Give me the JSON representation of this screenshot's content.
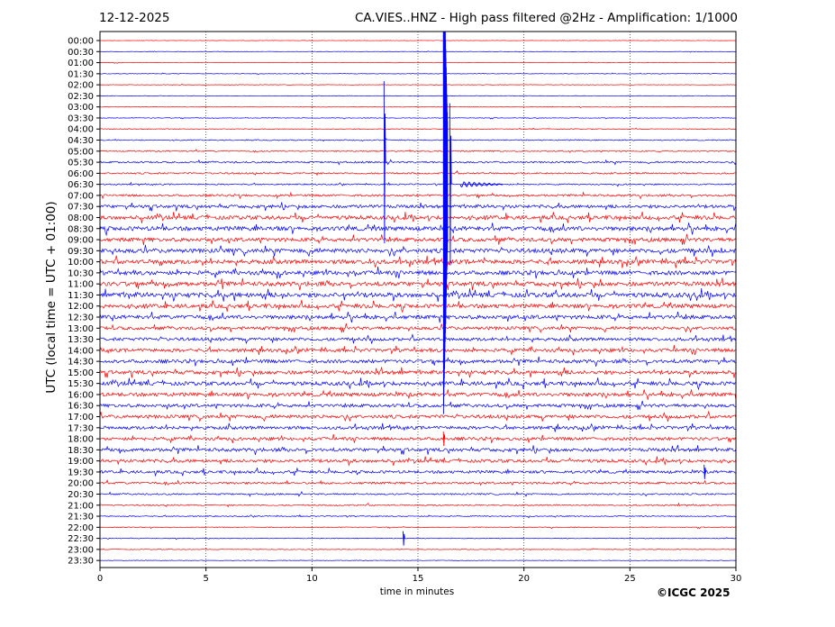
{
  "header": {
    "date": "12-12-2025",
    "title": "CA.VIES..HNZ - High pass filtered @2Hz - Amplification: 1/1000"
  },
  "footer": {
    "copyright": "©ICGC 2025"
  },
  "chart_data": {
    "type": "line",
    "title": "CA.VIES..HNZ - High pass filtered @2Hz - Amplification: 1/1000",
    "date": "12-12-2025",
    "xlabel": "time in minutes",
    "ylabel": "UTC (local time = UTC + 01:00)",
    "xlim": [
      0,
      30
    ],
    "x_ticks": [
      "0",
      "5",
      "10",
      "15",
      "20",
      "25",
      "30"
    ],
    "x_tick_values": [
      0,
      5,
      10,
      15,
      20,
      25,
      30
    ],
    "grid": "vertical dotted at 5-minute ticks",
    "row_colors": [
      "#ff0000",
      "#0000ff"
    ],
    "rows": [
      "00:00",
      "00:30",
      "01:00",
      "01:30",
      "02:00",
      "02:30",
      "03:00",
      "03:30",
      "04:00",
      "04:30",
      "05:00",
      "05:30",
      "06:00",
      "06:30",
      "07:00",
      "07:30",
      "08:00",
      "08:30",
      "09:00",
      "09:30",
      "10:00",
      "10:30",
      "11:00",
      "11:30",
      "12:00",
      "12:30",
      "13:00",
      "13:30",
      "14:00",
      "14:30",
      "15:00",
      "15:30",
      "16:00",
      "16:30",
      "17:00",
      "17:30",
      "18:00",
      "18:30",
      "19:00",
      "19:30",
      "20:00",
      "20:30",
      "21:00",
      "21:30",
      "22:00",
      "22:30",
      "23:00",
      "23:30"
    ],
    "noise_level": [
      0.3,
      0.3,
      0.4,
      0.4,
      0.4,
      0.4,
      0.4,
      0.5,
      0.6,
      0.8,
      0.9,
      1.3,
      1.2,
      1.0,
      1.6,
      2.4,
      2.9,
      3.2,
      2.8,
      3.2,
      3.2,
      3.1,
      3.2,
      3.4,
      3.0,
      2.9,
      2.4,
      2.4,
      2.6,
      2.6,
      2.8,
      2.9,
      2.8,
      2.4,
      2.6,
      2.4,
      2.3,
      2.5,
      2.4,
      2.1,
      1.6,
      1.2,
      1.0,
      0.8,
      0.6,
      0.6,
      0.5,
      0.4
    ],
    "events": [
      {
        "row": "06:30",
        "minute": 16.2,
        "label": "large transient"
      },
      {
        "row": "06:30",
        "minute": 16.5,
        "label": "transient"
      },
      {
        "row": "06:30",
        "minute": 17.0,
        "label": "wave train"
      },
      {
        "row": "05:30",
        "minute": 13.4,
        "label": "transient"
      },
      {
        "row": "22:30",
        "minute": 14.3,
        "label": "spike"
      },
      {
        "row": "19:30",
        "minute": 28.5,
        "label": "spike"
      },
      {
        "row": "18:00",
        "minute": 16.2,
        "label": "spike"
      }
    ]
  }
}
